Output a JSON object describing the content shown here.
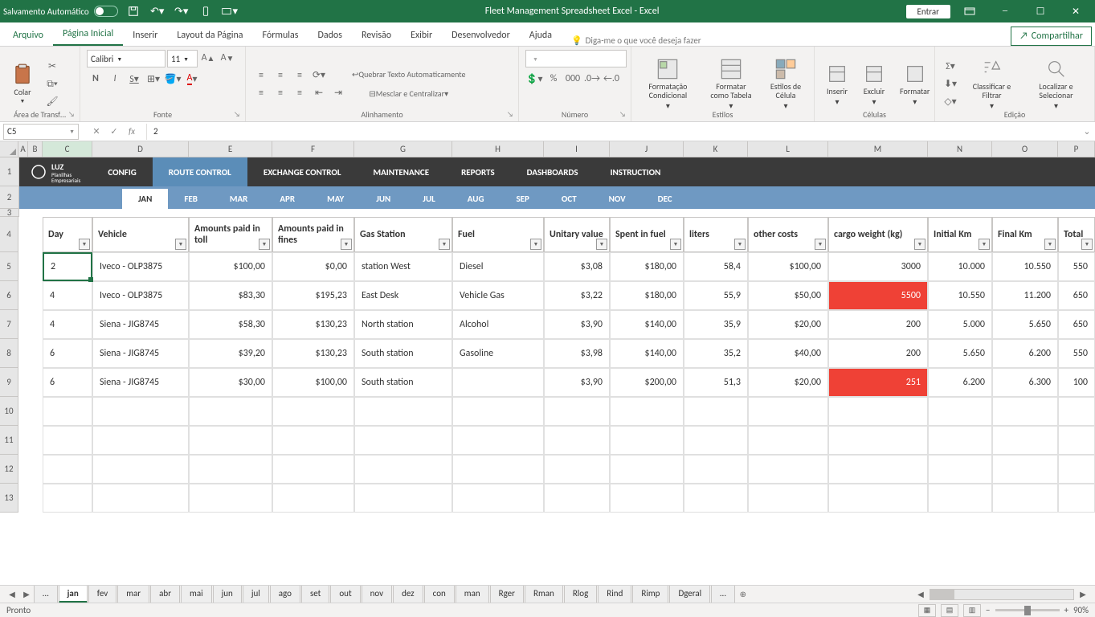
{
  "title_bar": {
    "autosave_label": "Salvamento Automático",
    "document_title": "Fleet Management Spreadsheet Excel  -  Excel",
    "signin_label": "Entrar"
  },
  "ribbon_tabs": {
    "file": "Arquivo",
    "home": "Página Inicial",
    "insert": "Inserir",
    "layout": "Layout da Página",
    "formulas": "Fórmulas",
    "data": "Dados",
    "review": "Revisão",
    "view": "Exibir",
    "developer": "Desenvolvedor",
    "help": "Ajuda",
    "tellme": "Diga-me o que você deseja fazer",
    "share": "Compartilhar"
  },
  "ribbon": {
    "clipboard": {
      "label": "Área de Transf…",
      "paste": "Colar"
    },
    "font": {
      "label": "Fonte",
      "name": "Calibri",
      "size": "11"
    },
    "alignment": {
      "label": "Alinhamento",
      "wrap": "Quebrar Texto Automaticamente",
      "merge": "Mesclar e Centralizar"
    },
    "number": {
      "label": "Número",
      "percent": "%",
      "thousand": "000"
    },
    "styles": {
      "label": "Estilos",
      "cond": "Formatação Condicional",
      "table": "Formatar como Tabela",
      "cell": "Estilos de Célula"
    },
    "cells": {
      "label": "Células",
      "insert": "Inserir",
      "delete": "Excluir",
      "format": "Formatar"
    },
    "editing": {
      "label": "Edição",
      "sort": "Classificar e Filtrar",
      "find": "Localizar e Selecionar"
    }
  },
  "formula": {
    "name_box": "C5",
    "value": "2"
  },
  "columns": [
    "A",
    "B",
    "C",
    "D",
    "E",
    "F",
    "G",
    "H",
    "I",
    "J",
    "K",
    "L",
    "M",
    "N",
    "O",
    "P"
  ],
  "row_numbers": [
    "1",
    "2",
    "3",
    "4",
    "5",
    "6",
    "7",
    "8",
    "9",
    "10",
    "11",
    "12",
    "13"
  ],
  "app_nav": {
    "logo": "LUZ",
    "logo_sub": "Planilhas\nEmpresariais",
    "tabs": [
      "CONFIG",
      "ROUTE CONTROL",
      "EXCHANGE CONTROL",
      "MAINTENANCE",
      "REPORTS",
      "DASHBOARDS",
      "INSTRUCTION"
    ],
    "active_index": 1
  },
  "months": {
    "list": [
      "JAN",
      "FEB",
      "MAR",
      "APR",
      "MAY",
      "JUN",
      "JUL",
      "AUG",
      "SEP",
      "OCT",
      "NOV",
      "DEC"
    ],
    "active_index": 0
  },
  "table": {
    "headers": [
      "Day",
      "Vehicle",
      "Amounts paid in toll",
      "Amounts paid in fines",
      "Gas Station",
      "Fuel",
      "Unitary value",
      "Spent in fuel",
      "liters",
      "other costs",
      "cargo weight (kg)",
      "Initial Km",
      "Final Km",
      "Total"
    ],
    "rows": [
      {
        "cells": [
          "2",
          "Iveco - OLP3875",
          "$100,00",
          "$0,00",
          "station West",
          "Diesel",
          "$3,08",
          "$180,00",
          "58,4",
          "$100,00",
          "3000",
          "10.000",
          "10.550",
          "550"
        ],
        "alert_cols": []
      },
      {
        "cells": [
          "4",
          "Iveco - OLP3875",
          "$83,30",
          "$195,23",
          "East Desk",
          "Vehicle Gas",
          "$3,22",
          "$180,00",
          "55,9",
          "$50,00",
          "5500",
          "10.550",
          "11.200",
          "650"
        ],
        "alert_cols": [
          10
        ]
      },
      {
        "cells": [
          "4",
          "Siena - JIG8745",
          "$58,30",
          "$130,23",
          "North station",
          "Alcohol",
          "$3,90",
          "$140,00",
          "35,9",
          "$20,00",
          "200",
          "5.000",
          "5.650",
          "650"
        ],
        "alert_cols": []
      },
      {
        "cells": [
          "6",
          "Siena - JIG8745",
          "$39,20",
          "$130,23",
          "South station",
          "Gasoline",
          "$3,98",
          "$140,00",
          "35,2",
          "$40,00",
          "200",
          "5.650",
          "6.200",
          "550"
        ],
        "alert_cols": []
      },
      {
        "cells": [
          "6",
          "Siena - JIG8745",
          "$30,00",
          "$100,00",
          "South station",
          "",
          "$3,90",
          "$200,00",
          "51,3",
          "$20,00",
          "251",
          "6.200",
          "6.300",
          "100"
        ],
        "alert_cols": [
          10
        ]
      }
    ],
    "empty_rows": 4
  },
  "sheet_tabs": {
    "list": [
      "…",
      "jan",
      "fev",
      "mar",
      "abr",
      "mai",
      "jun",
      "jul",
      "ago",
      "set",
      "out",
      "nov",
      "dez",
      "con",
      "man",
      "Rger",
      "Rman",
      "Rlog",
      "Rind",
      "Rimp",
      "Dgeral",
      "…"
    ],
    "active_index": 1
  },
  "status": {
    "ready": "Pronto",
    "zoom": "90%"
  },
  "colors": {
    "excel_green": "#217346",
    "dark_nav": "#3a3a3a",
    "blue_nav": "#5b8db8",
    "periwinkle": "#6f99c2",
    "alert_red": "#ef4136"
  },
  "col_widths": {
    "C": 62,
    "D": 120,
    "E": 104,
    "F": 102,
    "G": 122,
    "H": 114,
    "I": 82,
    "J": 92,
    "K": 80,
    "L": 100,
    "M": 124,
    "N": 80,
    "O": 82,
    "P": 46
  }
}
